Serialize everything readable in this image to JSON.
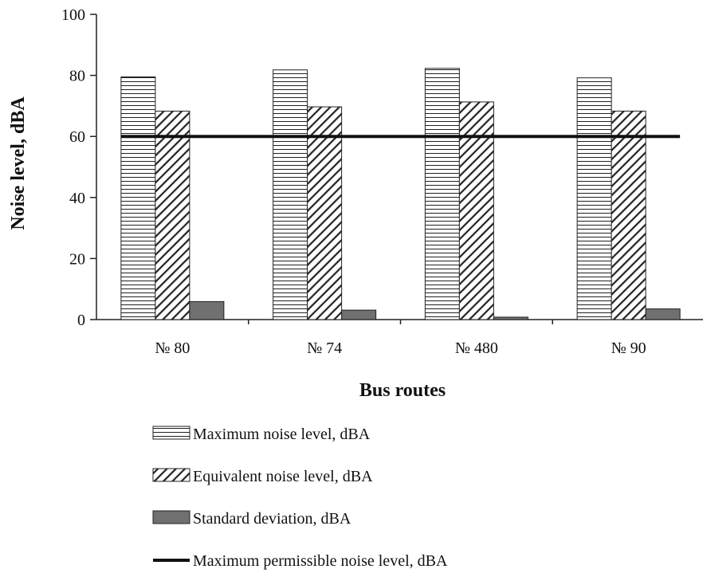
{
  "chart_data": {
    "type": "bar",
    "xlabel": "Bus routes",
    "ylabel": "Noise level, dBA",
    "categories": [
      "№ 80",
      "№ 74",
      "№ 480",
      "№ 90"
    ],
    "ylim": [
      0,
      100
    ],
    "yticks": [
      0,
      20,
      40,
      60,
      80,
      100
    ],
    "series": [
      {
        "name": "Maximum noise level, dBA",
        "values": [
          79.5,
          81.8,
          82.3,
          79.2
        ],
        "fill": "horizontal-hatch"
      },
      {
        "name": "Equivalent noise level, dBA",
        "values": [
          68.3,
          69.7,
          71.3,
          68.3
        ],
        "fill": "diagonal-hatch"
      },
      {
        "name": "Standard deviation, dBA",
        "values": [
          5.9,
          3.1,
          0.8,
          3.5
        ],
        "fill": "solid",
        "color": "#707070"
      }
    ],
    "reference_line": {
      "name": "Maximum permissible noise level, dBA",
      "value": 60,
      "color": "#111111"
    },
    "grid": false,
    "legend": "bottom"
  }
}
